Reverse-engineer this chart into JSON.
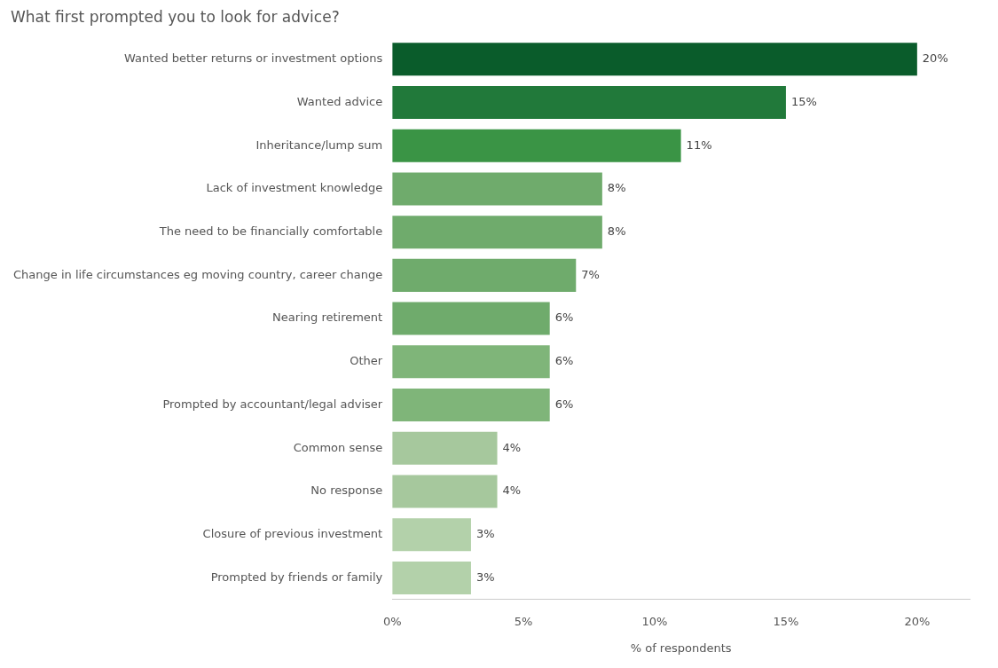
{
  "chart_data": {
    "type": "bar",
    "orientation": "horizontal",
    "title": "What first prompted you to look for advice?",
    "xlabel": "% of respondents",
    "categories": [
      "Wanted better returns or investment options",
      "Wanted advice",
      "Inheritance/lump sum",
      "Lack of investment knowledge",
      "The need to be financially comfortable",
      "Change in life circumstances eg moving country, career change",
      "Nearing retirement",
      "Other",
      "Prompted by accountant/legal adviser",
      "Common sense",
      "No response",
      "Closure of previous investment",
      "Prompted by friends or family"
    ],
    "values": [
      20,
      15,
      11,
      8,
      8,
      7,
      6,
      6,
      6,
      4,
      4,
      3,
      3
    ],
    "value_labels": [
      "20%",
      "15%",
      "11%",
      "8%",
      "8%",
      "7%",
      "6%",
      "6%",
      "6%",
      "4%",
      "4%",
      "3%",
      "3%"
    ],
    "colors": [
      "#0a5c2b",
      "#21793a",
      "#3a9445",
      "#6fab6c",
      "#6fab6c",
      "#6fab6c",
      "#6fab6c",
      "#7fb579",
      "#7fb579",
      "#a6c89d",
      "#a6c89d",
      "#b3d1aa",
      "#b3d1aa"
    ],
    "xlim": [
      0,
      22
    ],
    "xticks": [
      {
        "value": 0,
        "label": "0%"
      },
      {
        "value": 5,
        "label": "5%"
      },
      {
        "value": 10,
        "label": "10%"
      },
      {
        "value": 15,
        "label": "15%"
      },
      {
        "value": 20,
        "label": "20%"
      }
    ]
  }
}
